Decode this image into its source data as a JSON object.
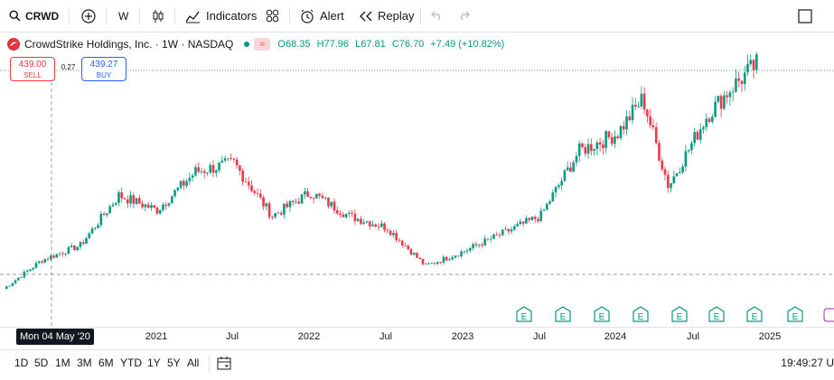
{
  "toolbar": {
    "symbol": "CRWD",
    "interval": "W",
    "indicators_label": "Indicators",
    "alert_label": "Alert",
    "replay_label": "Replay"
  },
  "legend": {
    "title": "CrowdStrike Holdings, Inc. · 1W · NASDAQ",
    "open": "O68.35",
    "high": "H77.96",
    "low": "L67.81",
    "close": "C76.70",
    "change": "+7.49 (+10.82%)"
  },
  "trade": {
    "sell_price": "439.00",
    "sell_label": "SELL",
    "spread": "0.27",
    "buy_price": "439.27",
    "buy_label": "BUY"
  },
  "time_axis": {
    "crosshair_label": "Mon 04 May '20",
    "labels": [
      "2021",
      "Jul",
      "2022",
      "Jul",
      "2023",
      "Jul",
      "2024",
      "Jul",
      "2025"
    ]
  },
  "earnings_marker": "E",
  "ranges": [
    "1D",
    "5D",
    "1M",
    "3M",
    "6M",
    "YTD",
    "1Y",
    "5Y",
    "All"
  ],
  "clock": "19:49:27 U",
  "colors": {
    "up": "#089981",
    "down": "#f23645",
    "accent": "#2962ff"
  },
  "chart_data": {
    "type": "candlestick",
    "symbol": "CRWD",
    "interval": "1W",
    "x_range": [
      "2020-04",
      "2025-03"
    ],
    "series_close_approx": [
      {
        "date": "2020-04",
        "close": 56
      },
      {
        "date": "2020-07",
        "close": 105
      },
      {
        "date": "2020-10",
        "close": 130
      },
      {
        "date": "2021-01",
        "close": 215
      },
      {
        "date": "2021-04",
        "close": 190
      },
      {
        "date": "2021-07",
        "close": 255
      },
      {
        "date": "2021-10",
        "close": 270
      },
      {
        "date": "2022-01",
        "close": 180
      },
      {
        "date": "2022-04",
        "close": 220
      },
      {
        "date": "2022-07",
        "close": 180
      },
      {
        "date": "2022-10",
        "close": 160
      },
      {
        "date": "2023-01",
        "close": 95
      },
      {
        "date": "2023-04",
        "close": 120
      },
      {
        "date": "2023-07",
        "close": 150
      },
      {
        "date": "2023-10",
        "close": 180
      },
      {
        "date": "2024-01",
        "close": 290
      },
      {
        "date": "2024-04",
        "close": 320
      },
      {
        "date": "2024-06",
        "close": 380
      },
      {
        "date": "2024-08",
        "close": 230
      },
      {
        "date": "2024-11",
        "close": 350
      },
      {
        "date": "2025-01",
        "close": 400
      },
      {
        "date": "2025-03",
        "close": 439
      }
    ]
  }
}
